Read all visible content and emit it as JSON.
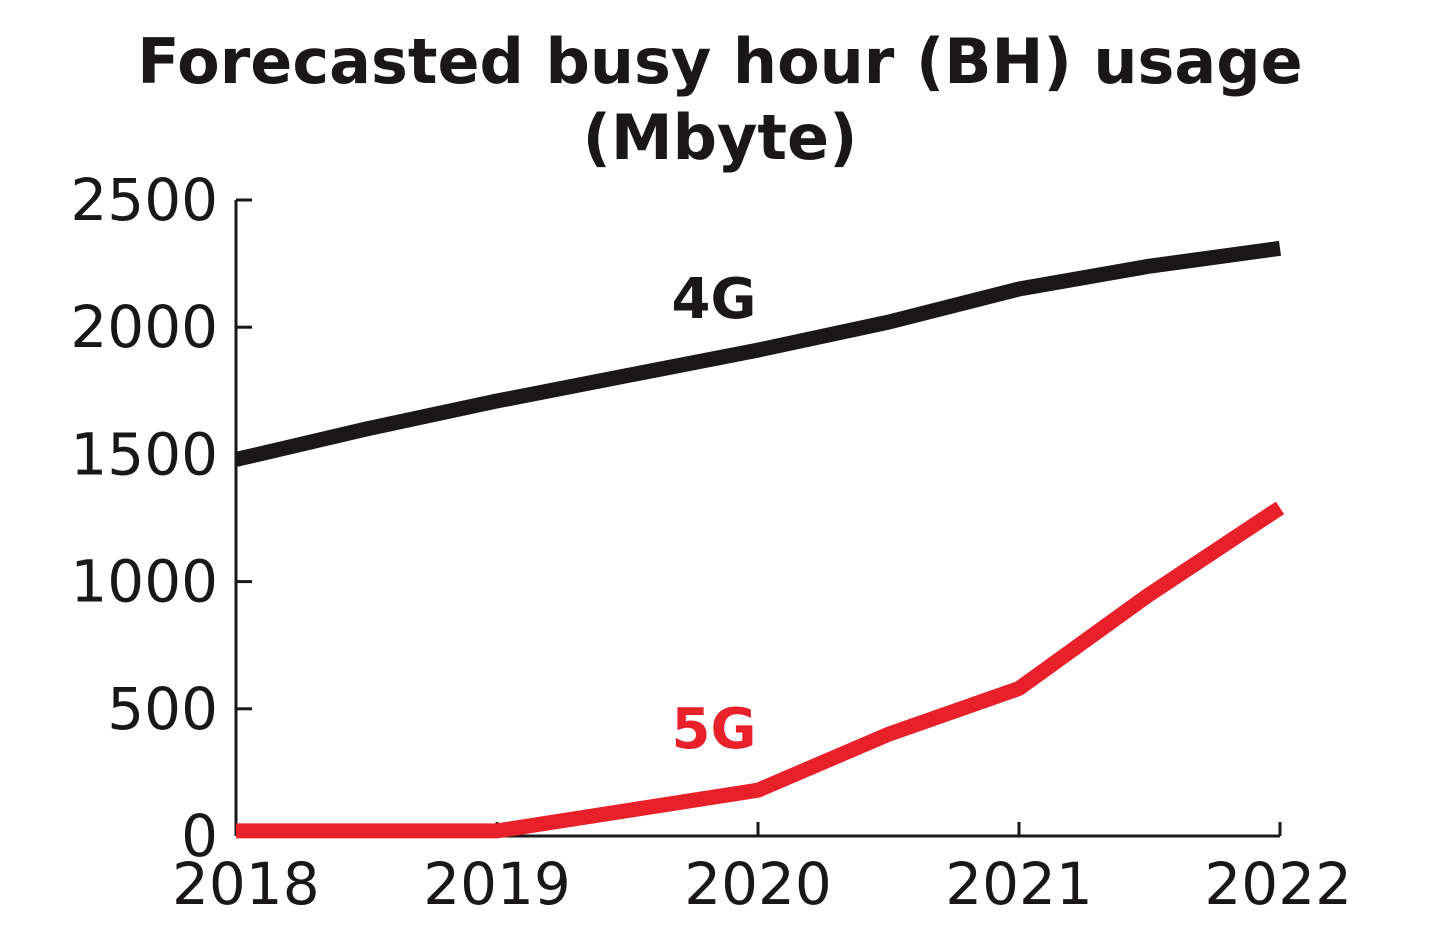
{
  "chart_data": {
    "type": "line",
    "title_lines": [
      "Forecasted busy hour (BH) usage",
      "(Mbyte)"
    ],
    "xlabel": "",
    "ylabel": "",
    "x": [
      2018,
      2019,
      2019.5,
      2020,
      2020.5,
      2021,
      2021.5,
      2022
    ],
    "x_ticks": [
      "2018",
      "2019",
      "2020",
      "2021",
      "2022"
    ],
    "y_ticks": [
      "0",
      "500",
      "1000",
      "1500",
      "2000",
      "2500"
    ],
    "xlim": [
      2018,
      2022
    ],
    "ylim": [
      0,
      2500
    ],
    "grid": false,
    "series": [
      {
        "name": "4G",
        "color": "#1a1718",
        "x": [
          2018,
          2018.5,
          2019,
          2019.5,
          2020,
          2020.5,
          2021,
          2021.5,
          2022
        ],
        "values": [
          1480,
          1600,
          1710,
          1810,
          1910,
          2020,
          2150,
          2240,
          2310
        ]
      },
      {
        "name": "5G",
        "color": "#e8202a",
        "x": [
          2018,
          2019,
          2019.5,
          2020,
          2020.5,
          2021,
          2021.5,
          2022
        ],
        "values": [
          20,
          20,
          100,
          180,
          400,
          580,
          950,
          1290
        ]
      }
    ]
  }
}
